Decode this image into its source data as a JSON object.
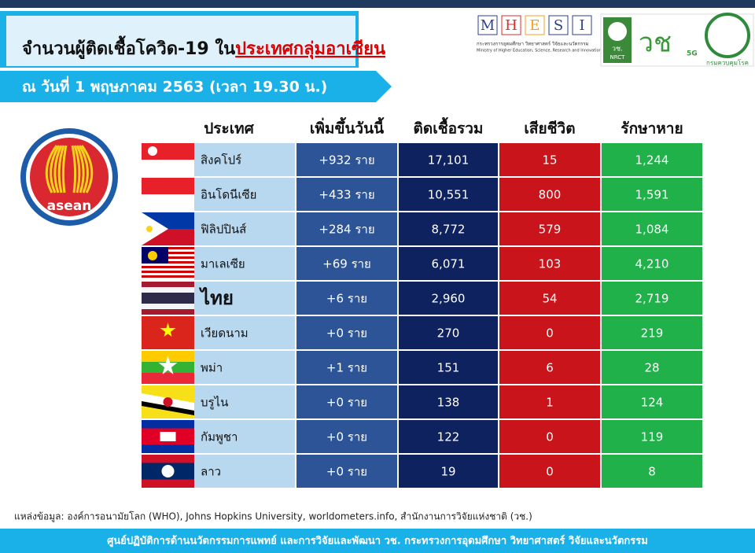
{
  "header": {
    "title": "จำนวนผู้ติดเชื้อโควิด-19 ใน",
    "title_highlight": "ประเทศกลุ่มอาเซียน",
    "date": "ณ วันที่ 1 พฤษภาคม 2563 (เวลา 19.30 น.)"
  },
  "logos": {
    "mhesi": [
      "M",
      "H",
      "E",
      "S",
      "I"
    ],
    "mhesi_th": "กระทรวงการอุดมศึกษา วิทยาศาสตร์ วิจัยและนวัตกรรม",
    "mhesi_en": "Ministry of Higher Education, Science, Research and Innovation",
    "nrct_th": "วช.",
    "nrct": "NRCT",
    "nrct_big": "วช",
    "g5": "5G",
    "ddc": "กรมควบคุมโรค"
  },
  "asean": "asean",
  "table": {
    "headers": [
      "ประเทศ",
      "เพิ่มขึ้นวันนี้",
      "ติดเชื้อรวม",
      "เสียชีวิต",
      "รักษาหาย"
    ],
    "rows": [
      [
        "สิงคโปร์",
        "+932 ราย",
        "17,101",
        "15",
        "1,244"
      ],
      [
        "อินโดนีเซีย",
        "+433 ราย",
        "10,551",
        "800",
        "1,591"
      ],
      [
        "ฟิลิปปินส์",
        "+284 ราย",
        "8,772",
        "579",
        "1,084"
      ],
      [
        "มาเลเซีย",
        "+69 ราย",
        "6,071",
        "103",
        "4,210"
      ],
      [
        "ไทย",
        "+6 ราย",
        "2,960",
        "54",
        "2,719"
      ],
      [
        "เวียดนาม",
        "+0 ราย",
        "270",
        "0",
        "219"
      ],
      [
        "พม่า",
        "+1 ราย",
        "151",
        "6",
        "28"
      ],
      [
        "บรูไน",
        "+0 ราย",
        "138",
        "1",
        "124"
      ],
      [
        "กัมพูชา",
        "+0 ราย",
        "122",
        "0",
        "119"
      ],
      [
        "ลาว",
        "+0 ราย",
        "19",
        "0",
        "8"
      ]
    ]
  },
  "source": "แหล่งข้อมูล: องค์การอนามัยโลก (WHO), Johns Hopkins University, worldometers.info, สำนักงานการวิจัยแห่งชาติ (วช.)",
  "footer": "ศูนย์ปฏิบัติการด้านนวัตกรรมการแพทย์ และการวิจัยและพัฒนา วช. กระทรวงการอุดมศึกษา วิทยาศาสตร์ วิจัยและนวัตกรรม"
}
